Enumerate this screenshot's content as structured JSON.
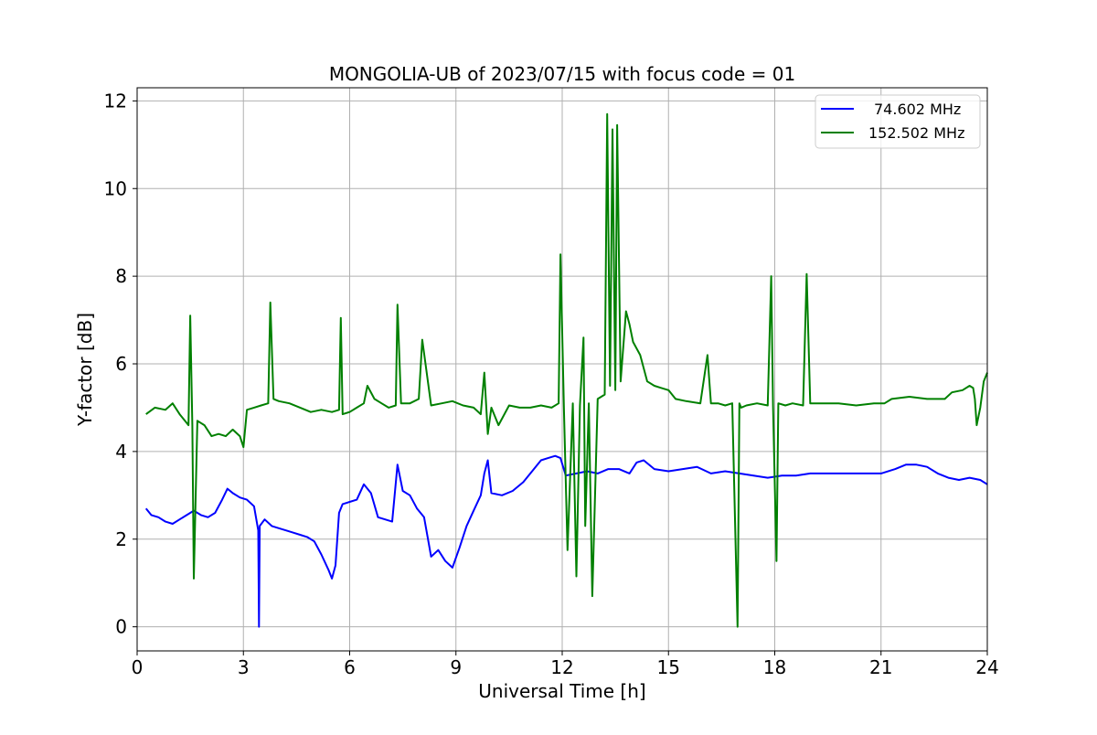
{
  "chart_data": {
    "type": "line",
    "title": "MONGOLIA-UB of 2023/07/15 with focus code = 01",
    "xlabel": "Universal Time [h]",
    "ylabel": "Y-factor [dB]",
    "xlim": [
      0,
      24
    ],
    "ylim": [
      -0.55,
      12.3
    ],
    "xticks": [
      0,
      3,
      6,
      9,
      12,
      15,
      18,
      21,
      24
    ],
    "xtick_labels": [
      "0",
      "3",
      "6",
      "9",
      "12",
      "15",
      "18",
      "21",
      "24"
    ],
    "yticks": [
      0,
      2,
      4,
      6,
      8,
      10,
      12
    ],
    "ytick_labels": [
      "0",
      "2",
      "4",
      "6",
      "8",
      "10",
      "12"
    ],
    "grid": true,
    "legend_position": "top-right",
    "series": [
      {
        "name": "74.602 MHz",
        "color": "#0000ff",
        "x": [
          0.25,
          0.4,
          0.6,
          0.8,
          1.0,
          1.2,
          1.4,
          1.6,
          1.8,
          2.0,
          2.2,
          2.4,
          2.55,
          2.7,
          2.9,
          3.1,
          3.3,
          3.42,
          3.44,
          3.46,
          3.6,
          3.8,
          4.0,
          4.2,
          4.4,
          4.6,
          4.8,
          5.0,
          5.2,
          5.4,
          5.5,
          5.6,
          5.7,
          5.8,
          6.0,
          6.2,
          6.4,
          6.6,
          6.8,
          7.0,
          7.2,
          7.35,
          7.5,
          7.7,
          7.9,
          8.1,
          8.3,
          8.5,
          8.7,
          8.9,
          9.1,
          9.3,
          9.5,
          9.7,
          9.8,
          9.9,
          10.0,
          10.3,
          10.6,
          10.9,
          11.2,
          11.4,
          11.6,
          11.8,
          11.95,
          12.1,
          12.4,
          12.7,
          13.0,
          13.3,
          13.6,
          13.9,
          14.1,
          14.3,
          14.6,
          15.0,
          15.4,
          15.8,
          16.2,
          16.6,
          17.0,
          17.4,
          17.8,
          18.2,
          18.6,
          19.0,
          19.5,
          20.0,
          20.5,
          21.0,
          21.4,
          21.7,
          22.0,
          22.3,
          22.6,
          22.9,
          23.2,
          23.5,
          23.8,
          24.0
        ],
        "values": [
          2.7,
          2.55,
          2.5,
          2.4,
          2.35,
          2.45,
          2.55,
          2.65,
          2.55,
          2.5,
          2.6,
          2.9,
          3.15,
          3.05,
          2.95,
          2.9,
          2.75,
          2.2,
          0.0,
          2.3,
          2.45,
          2.3,
          2.25,
          2.2,
          2.15,
          2.1,
          2.05,
          1.95,
          1.65,
          1.3,
          1.1,
          1.4,
          2.6,
          2.8,
          2.85,
          2.9,
          3.25,
          3.05,
          2.5,
          2.45,
          2.4,
          3.7,
          3.1,
          3.0,
          2.7,
          2.5,
          1.6,
          1.75,
          1.5,
          1.35,
          1.8,
          2.3,
          2.65,
          3.0,
          3.5,
          3.8,
          3.05,
          3.0,
          3.1,
          3.3,
          3.6,
          3.8,
          3.85,
          3.9,
          3.85,
          3.45,
          3.5,
          3.55,
          3.5,
          3.6,
          3.6,
          3.5,
          3.75,
          3.8,
          3.6,
          3.55,
          3.6,
          3.65,
          3.5,
          3.55,
          3.5,
          3.45,
          3.4,
          3.45,
          3.45,
          3.5,
          3.5,
          3.5,
          3.5,
          3.5,
          3.6,
          3.7,
          3.7,
          3.65,
          3.5,
          3.4,
          3.35,
          3.4,
          3.35,
          3.25
        ]
      },
      {
        "name": "152.502 MHz",
        "color": "#008000",
        "x": [
          0.25,
          0.5,
          0.8,
          1.0,
          1.2,
          1.35,
          1.45,
          1.5,
          1.56,
          1.6,
          1.7,
          1.9,
          2.1,
          2.3,
          2.5,
          2.7,
          2.9,
          3.0,
          3.1,
          3.3,
          3.5,
          3.7,
          3.76,
          3.85,
          4.0,
          4.3,
          4.6,
          4.9,
          5.2,
          5.5,
          5.7,
          5.75,
          5.8,
          6.0,
          6.2,
          6.4,
          6.5,
          6.7,
          6.9,
          7.1,
          7.3,
          7.35,
          7.45,
          7.7,
          7.95,
          8.05,
          8.3,
          8.6,
          8.9,
          9.2,
          9.5,
          9.7,
          9.8,
          9.9,
          10.0,
          10.2,
          10.5,
          10.8,
          11.1,
          11.4,
          11.7,
          11.9,
          11.95,
          12.05,
          12.15,
          12.3,
          12.4,
          12.5,
          12.6,
          12.65,
          12.75,
          12.85,
          13.0,
          13.2,
          13.27,
          13.35,
          13.42,
          13.5,
          13.55,
          13.65,
          13.8,
          13.9,
          14.0,
          14.2,
          14.4,
          14.6,
          14.8,
          15.0,
          15.2,
          15.5,
          15.9,
          16.1,
          16.2,
          16.4,
          16.6,
          16.8,
          16.95,
          17.0,
          17.05,
          17.2,
          17.5,
          17.8,
          17.9,
          17.95,
          18.05,
          18.1,
          18.3,
          18.5,
          18.8,
          18.9,
          19.0,
          19.3,
          19.8,
          20.3,
          20.8,
          21.1,
          21.3,
          21.8,
          22.3,
          22.8,
          23.0,
          23.3,
          23.5,
          23.6,
          23.65,
          23.7,
          23.8,
          23.9,
          24.0
        ],
        "values": [
          4.85,
          5.0,
          4.95,
          5.1,
          4.85,
          4.7,
          4.6,
          7.1,
          4.6,
          1.1,
          4.7,
          4.6,
          4.35,
          4.4,
          4.35,
          4.5,
          4.35,
          4.1,
          4.95,
          5.0,
          5.05,
          5.1,
          7.4,
          5.2,
          5.15,
          5.1,
          5.0,
          4.9,
          4.95,
          4.9,
          4.95,
          7.05,
          4.85,
          4.9,
          5.0,
          5.1,
          5.5,
          5.2,
          5.1,
          5.0,
          5.05,
          7.35,
          5.1,
          5.1,
          5.2,
          6.55,
          5.05,
          5.1,
          5.15,
          5.05,
          5.0,
          4.85,
          5.8,
          4.4,
          5.0,
          4.6,
          5.05,
          5.0,
          5.0,
          5.05,
          5.0,
          5.1,
          8.5,
          4.95,
          1.75,
          5.1,
          1.15,
          5.05,
          6.6,
          2.3,
          5.1,
          0.7,
          5.2,
          5.3,
          11.7,
          5.5,
          11.35,
          5.4,
          11.45,
          5.6,
          7.2,
          6.9,
          6.5,
          6.2,
          5.6,
          5.5,
          5.45,
          5.4,
          5.2,
          5.15,
          5.1,
          6.2,
          5.1,
          5.1,
          5.05,
          5.1,
          0.0,
          5.1,
          5.0,
          5.05,
          5.1,
          5.05,
          8.0,
          5.05,
          1.5,
          5.1,
          5.05,
          5.1,
          5.05,
          8.05,
          5.1,
          5.1,
          5.1,
          5.05,
          5.1,
          5.1,
          5.2,
          5.25,
          5.2,
          5.2,
          5.35,
          5.4,
          5.5,
          5.45,
          5.2,
          4.6,
          5.0,
          5.6,
          5.8
        ]
      }
    ]
  }
}
